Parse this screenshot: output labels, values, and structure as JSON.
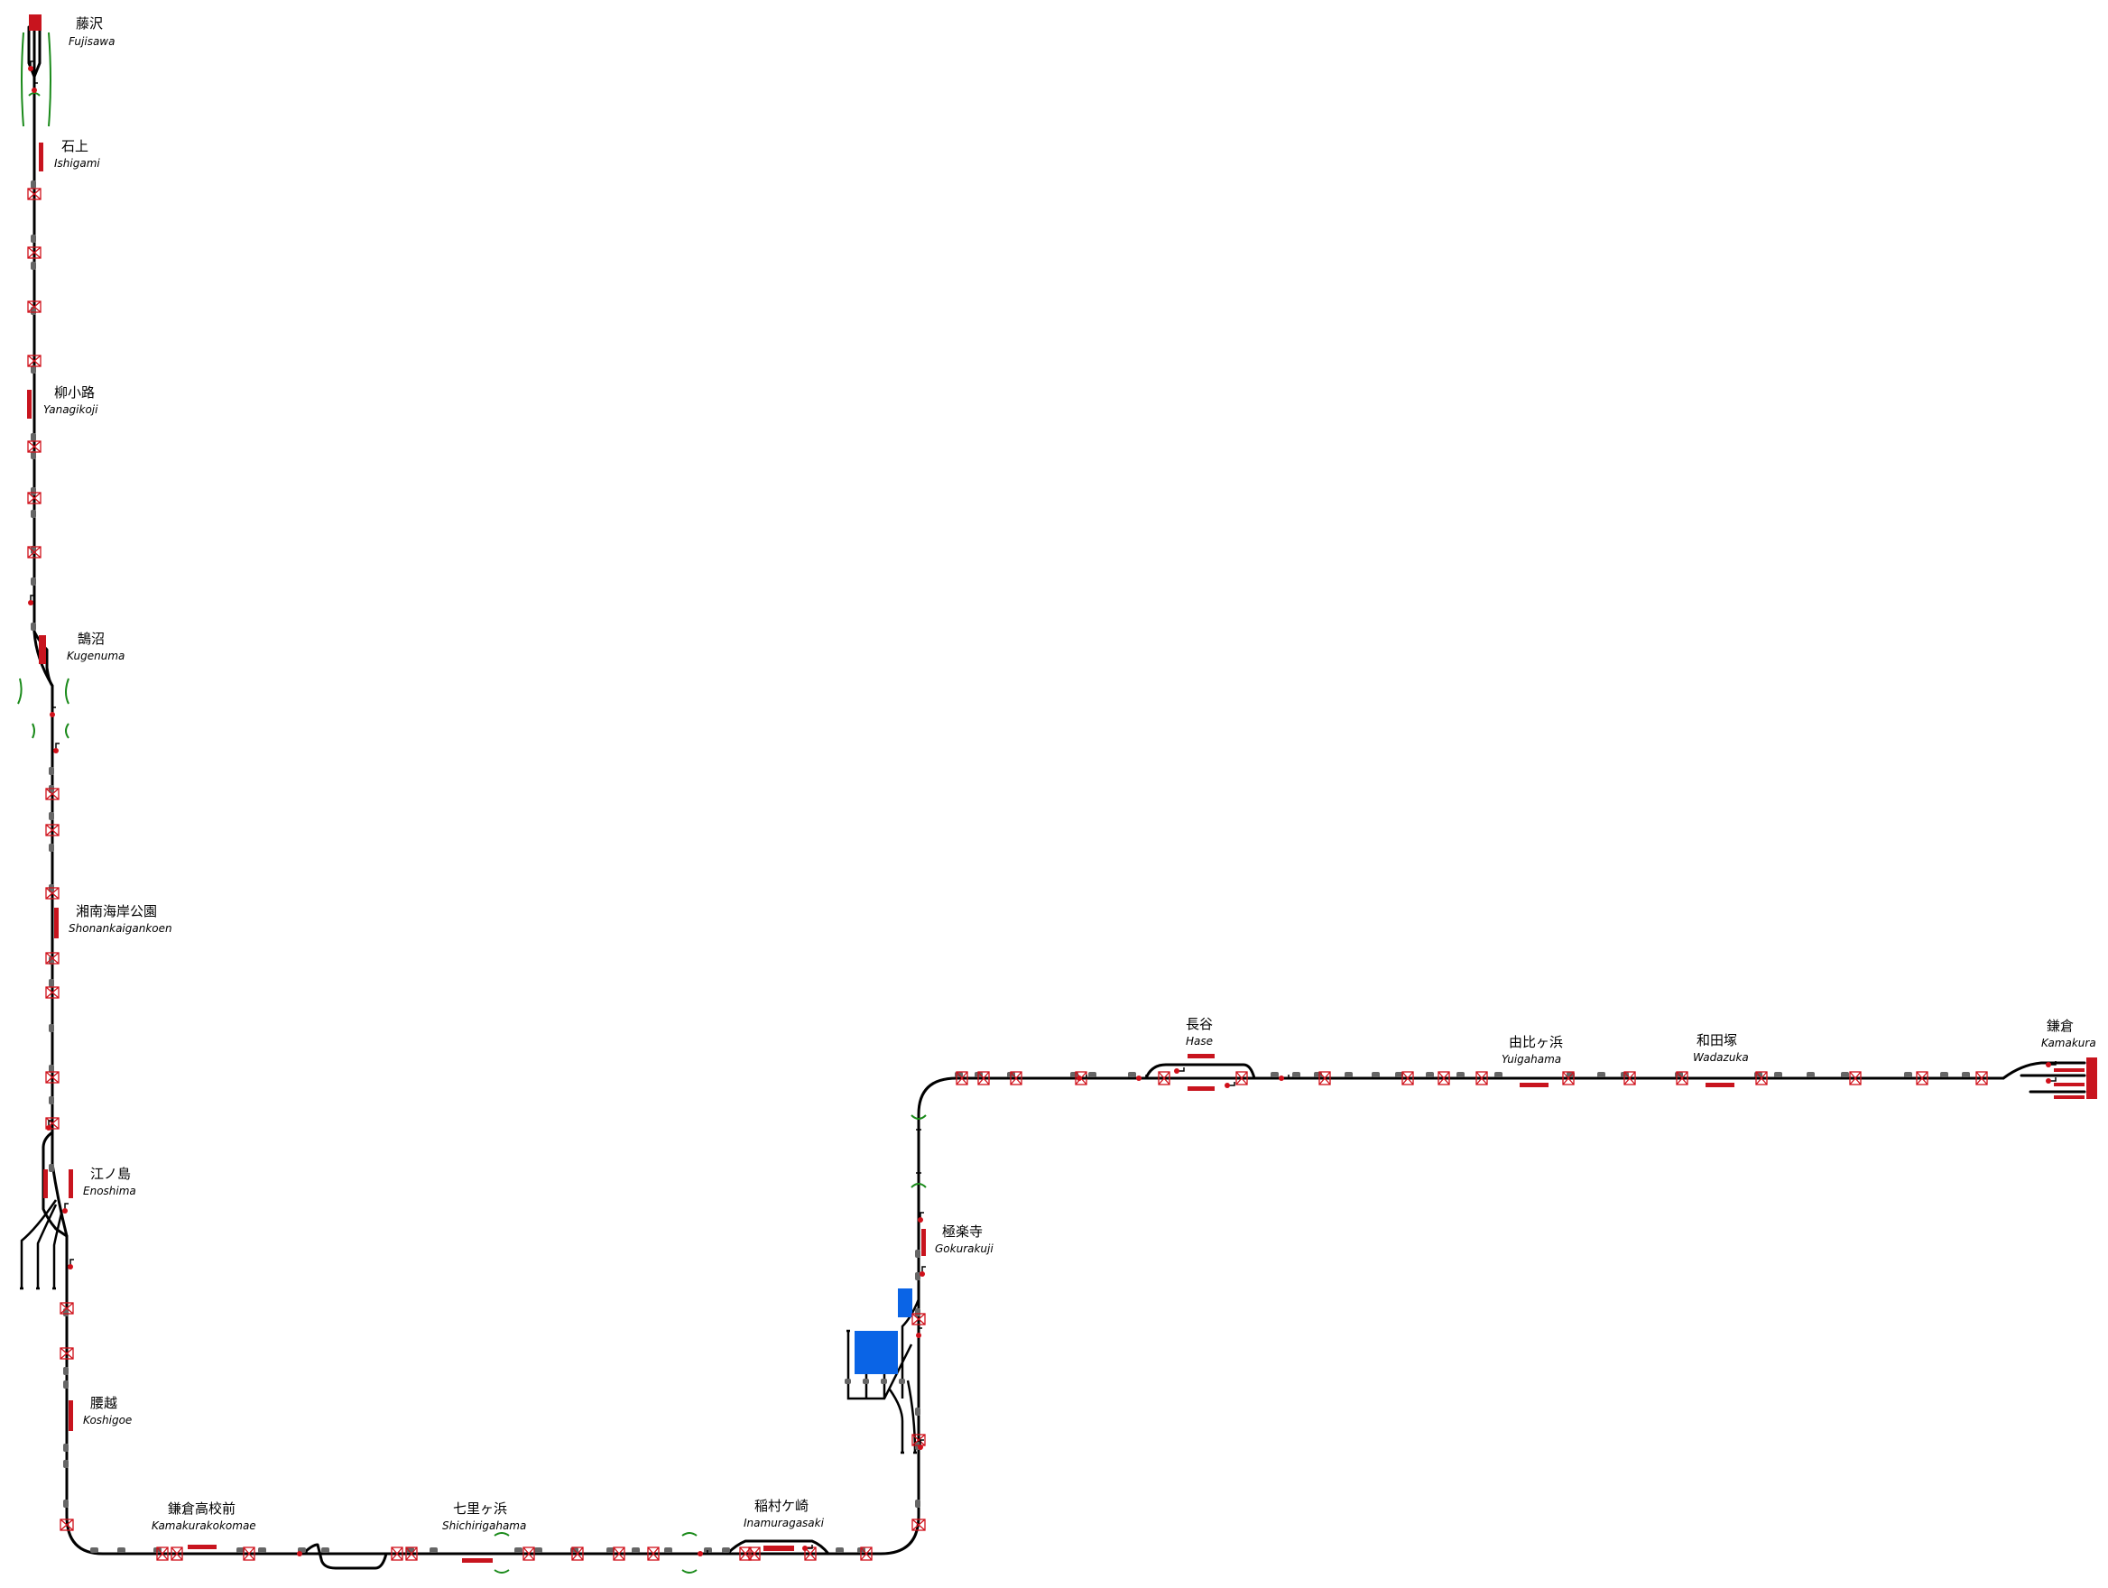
{
  "colors": {
    "track": "#000000",
    "platform": "#c8141e",
    "signal": "#d0101a",
    "crossing": "#d0101a",
    "marker": "#666666",
    "section_gap": "#1a8a1a",
    "depot": "#0a64e6"
  },
  "stations": [
    {
      "id": "fujisawa",
      "jp": "藤沢",
      "en": "Fujisawa"
    },
    {
      "id": "ishigami",
      "jp": "石上",
      "en": "Ishigami"
    },
    {
      "id": "yanagikoji",
      "jp": "柳小路",
      "en": "Yanagikoji"
    },
    {
      "id": "kugenuma",
      "jp": "鵠沼",
      "en": "Kugenuma"
    },
    {
      "id": "shonankaigankoen",
      "jp": "湘南海岸公園",
      "en": "Shonankaigankoen"
    },
    {
      "id": "enoshima",
      "jp": "江ノ島",
      "en": "Enoshima"
    },
    {
      "id": "koshigoe",
      "jp": "腰越",
      "en": "Koshigoe"
    },
    {
      "id": "kamakurakokomae",
      "jp": "鎌倉高校前",
      "en": "Kamakurakokomae"
    },
    {
      "id": "shichirigahama",
      "jp": "七里ヶ浜",
      "en": "Shichirigahama"
    },
    {
      "id": "inamuragasaki",
      "jp": "稲村ケ崎",
      "en": "Inamuragasaki"
    },
    {
      "id": "gokurakuji",
      "jp": "極楽寺",
      "en": "Gokurakuji"
    },
    {
      "id": "hase",
      "jp": "長谷",
      "en": "Hase"
    },
    {
      "id": "yuigahama",
      "jp": "由比ヶ浜",
      "en": "Yuigahama"
    },
    {
      "id": "wadazuka",
      "jp": "和田塚",
      "en": "Wadazuka"
    },
    {
      "id": "kamakura",
      "jp": "鎌倉",
      "en": "Kamakura"
    }
  ]
}
